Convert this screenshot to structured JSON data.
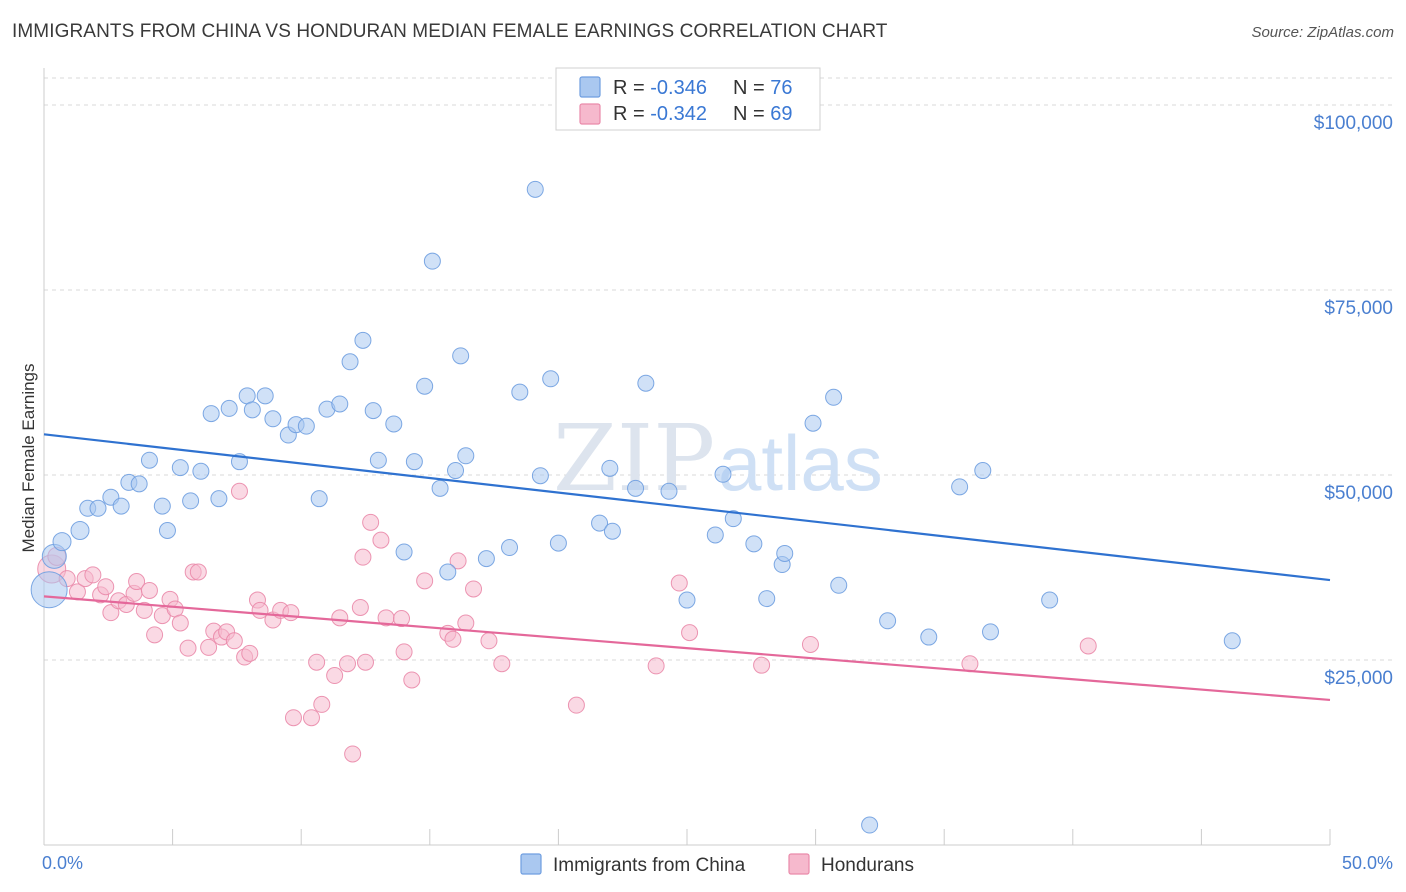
{
  "header": {
    "title": "IMMIGRANTS FROM CHINA VS HONDURAN MEDIAN FEMALE EARNINGS CORRELATION CHART",
    "source": "Source: ZipAtlas.com"
  },
  "watermark": {
    "zip": "ZIP",
    "atlas": "atlas"
  },
  "legend": {
    "rows": [
      {
        "r_label": "R = ",
        "r_value": "-0.346",
        "n_label": "N = ",
        "n_value": "76"
      },
      {
        "r_label": "R = ",
        "r_value": "-0.342",
        "n_label": "N = ",
        "n_value": "69"
      }
    ]
  },
  "colors": {
    "china_fill": "#aac8f0",
    "china_stroke": "#6f9ee0",
    "china_line": "#2f72d0",
    "hond_fill": "#f6b9cd",
    "hond_stroke": "#ea8aaa",
    "hond_line": "#e4689a",
    "axis_text": "#4a7fd0",
    "grid": "#d8d8d8"
  },
  "chart_data": {
    "type": "scatter",
    "title": "IMMIGRANTS FROM CHINA VS HONDURAN MEDIAN FEMALE EARNINGS CORRELATION CHART",
    "xlabel": "",
    "ylabel": "Median Female Earnings",
    "xlim": [
      0,
      50
    ],
    "ylim": [
      0,
      105000
    ],
    "x_tick_labels": [
      "0.0%",
      "50.0%"
    ],
    "y_ticks": [
      25000,
      50000,
      75000,
      100000
    ],
    "y_tick_labels": [
      "$25,000",
      "$50,000",
      "$75,000",
      "$100,000"
    ],
    "grid": "horizontal dashed",
    "legend_placement": "top-center",
    "series": [
      {
        "name": "Immigrants from China",
        "r": -0.346,
        "n": 76,
        "trend": {
          "x": [
            0,
            50
          ],
          "y": [
            55500,
            35800
          ]
        },
        "points": [
          [
            0.2,
            34500,
            18
          ],
          [
            0.4,
            39000,
            12
          ],
          [
            0.7,
            41000,
            9
          ],
          [
            1.4,
            42500,
            9
          ],
          [
            1.7,
            45500,
            8
          ],
          [
            2.1,
            45500,
            8
          ],
          [
            2.6,
            47000,
            8
          ],
          [
            3.0,
            45800,
            8
          ],
          [
            3.3,
            49000,
            8
          ],
          [
            3.7,
            48800,
            8
          ],
          [
            4.1,
            52000,
            8
          ],
          [
            4.6,
            45800,
            8
          ],
          [
            4.8,
            42500,
            8
          ],
          [
            5.3,
            51000,
            8
          ],
          [
            5.7,
            46500,
            8
          ],
          [
            6.1,
            50500,
            8
          ],
          [
            6.5,
            58300,
            8
          ],
          [
            6.8,
            46800,
            8
          ],
          [
            7.2,
            59000,
            8
          ],
          [
            7.6,
            51800,
            8
          ],
          [
            7.9,
            60700,
            8
          ],
          [
            8.1,
            58800,
            8
          ],
          [
            8.6,
            60700,
            8
          ],
          [
            8.9,
            57600,
            8
          ],
          [
            9.5,
            55400,
            8
          ],
          [
            9.8,
            56800,
            8
          ],
          [
            10.2,
            56600,
            8
          ],
          [
            10.7,
            46800,
            8
          ],
          [
            11.0,
            58900,
            8
          ],
          [
            11.5,
            59600,
            8
          ],
          [
            11.9,
            65300,
            8
          ],
          [
            12.4,
            68200,
            8
          ],
          [
            12.8,
            58700,
            8
          ],
          [
            13.0,
            52000,
            8
          ],
          [
            13.6,
            56900,
            8
          ],
          [
            14.0,
            39600,
            8
          ],
          [
            14.4,
            51800,
            8
          ],
          [
            14.8,
            62000,
            8
          ],
          [
            15.1,
            78900,
            8
          ],
          [
            15.4,
            48200,
            8
          ],
          [
            15.7,
            36900,
            8
          ],
          [
            16.2,
            66100,
            8
          ],
          [
            16.4,
            52600,
            8
          ],
          [
            17.2,
            38700,
            8
          ],
          [
            18.1,
            40200,
            8
          ],
          [
            18.5,
            61200,
            8
          ],
          [
            19.1,
            88600,
            8
          ],
          [
            19.3,
            49900,
            8
          ],
          [
            19.7,
            63000,
            8
          ],
          [
            20.0,
            40800,
            8
          ],
          [
            21.6,
            43500,
            8
          ],
          [
            22.0,
            50900,
            8
          ],
          [
            22.1,
            42400,
            8
          ],
          [
            23.0,
            48200,
            8
          ],
          [
            23.4,
            62400,
            8
          ],
          [
            24.3,
            47800,
            8
          ],
          [
            25.0,
            33100,
            8
          ],
          [
            26.1,
            41900,
            8
          ],
          [
            26.4,
            50100,
            8
          ],
          [
            26.8,
            44100,
            8
          ],
          [
            27.6,
            40700,
            8
          ],
          [
            28.1,
            33300,
            8
          ],
          [
            28.7,
            37900,
            8
          ],
          [
            28.8,
            39400,
            8
          ],
          [
            29.9,
            57000,
            8
          ],
          [
            30.7,
            60500,
            8
          ],
          [
            30.9,
            35100,
            8
          ],
          [
            32.1,
            2700,
            8
          ],
          [
            32.8,
            30300,
            8
          ],
          [
            34.4,
            28100,
            8
          ],
          [
            35.6,
            48400,
            8
          ],
          [
            36.5,
            50600,
            8
          ],
          [
            36.8,
            28800,
            8
          ],
          [
            39.1,
            33100,
            8
          ],
          [
            46.2,
            27600,
            8
          ],
          [
            16.0,
            50600,
            8
          ]
        ]
      },
      {
        "name": "Hondurans",
        "r": -0.342,
        "n": 69,
        "trend": {
          "x": [
            0,
            50
          ],
          "y": [
            33600,
            19600
          ]
        },
        "points": [
          [
            0.3,
            37300,
            14
          ],
          [
            0.5,
            39000,
            9
          ],
          [
            0.9,
            36000,
            8
          ],
          [
            1.3,
            34200,
            8
          ],
          [
            1.6,
            36000,
            8
          ],
          [
            1.9,
            36500,
            8
          ],
          [
            2.2,
            33800,
            8
          ],
          [
            2.4,
            34900,
            8
          ],
          [
            2.6,
            31400,
            8
          ],
          [
            2.9,
            33000,
            8
          ],
          [
            3.2,
            32500,
            8
          ],
          [
            3.5,
            34000,
            8
          ],
          [
            3.6,
            35600,
            8
          ],
          [
            3.9,
            31700,
            8
          ],
          [
            4.1,
            34400,
            8
          ],
          [
            4.3,
            28400,
            8
          ],
          [
            4.6,
            31000,
            8
          ],
          [
            4.9,
            33200,
            8
          ],
          [
            5.1,
            31900,
            8
          ],
          [
            5.3,
            30000,
            8
          ],
          [
            5.6,
            26600,
            8
          ],
          [
            5.8,
            36900,
            8
          ],
          [
            6.0,
            36900,
            8
          ],
          [
            6.4,
            26700,
            8
          ],
          [
            6.6,
            28900,
            8
          ],
          [
            6.9,
            28100,
            8
          ],
          [
            7.1,
            28800,
            8
          ],
          [
            7.4,
            27600,
            8
          ],
          [
            7.6,
            47800,
            8
          ],
          [
            7.8,
            25400,
            8
          ],
          [
            8.0,
            25900,
            8
          ],
          [
            8.3,
            33100,
            8
          ],
          [
            8.4,
            31700,
            8
          ],
          [
            8.9,
            30400,
            8
          ],
          [
            9.2,
            31700,
            8
          ],
          [
            9.6,
            31400,
            8
          ],
          [
            9.7,
            17200,
            8
          ],
          [
            10.4,
            17200,
            8
          ],
          [
            10.6,
            24700,
            8
          ],
          [
            10.8,
            19000,
            8
          ],
          [
            11.3,
            22900,
            8
          ],
          [
            11.5,
            30700,
            8
          ],
          [
            11.8,
            24500,
            8
          ],
          [
            12.0,
            12300,
            8
          ],
          [
            12.3,
            32100,
            8
          ],
          [
            12.4,
            38900,
            8
          ],
          [
            12.7,
            43600,
            8
          ],
          [
            13.1,
            41200,
            8
          ],
          [
            13.3,
            30700,
            8
          ],
          [
            13.9,
            30600,
            8
          ],
          [
            14.0,
            26100,
            8
          ],
          [
            14.3,
            22300,
            8
          ],
          [
            14.8,
            35700,
            8
          ],
          [
            15.7,
            28600,
            8
          ],
          [
            15.9,
            27800,
            8
          ],
          [
            16.1,
            38400,
            8
          ],
          [
            16.4,
            30000,
            8
          ],
          [
            16.7,
            34600,
            8
          ],
          [
            17.3,
            27600,
            8
          ],
          [
            17.8,
            24500,
            8
          ],
          [
            20.7,
            18900,
            8
          ],
          [
            23.8,
            24200,
            8
          ],
          [
            24.7,
            35400,
            8
          ],
          [
            25.1,
            28700,
            8
          ],
          [
            27.9,
            24300,
            8
          ],
          [
            29.8,
            27100,
            8
          ],
          [
            36.0,
            24500,
            8
          ],
          [
            40.6,
            26900,
            8
          ],
          [
            12.5,
            24700,
            8
          ]
        ]
      }
    ]
  }
}
